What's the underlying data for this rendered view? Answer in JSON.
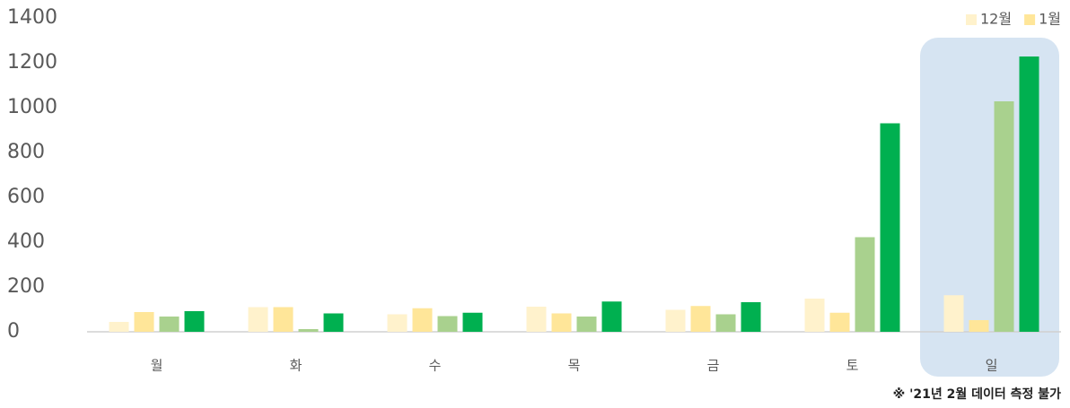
{
  "chart_data": {
    "type": "bar",
    "categories": [
      "월",
      "화",
      "수",
      "목",
      "금",
      "토",
      "일"
    ],
    "series": [
      {
        "name": "12월",
        "color": "#fff2cc",
        "values": [
          44,
          110,
          78,
          112,
          98,
          148,
          163
        ]
      },
      {
        "name": "1월",
        "color": "#ffe699",
        "values": [
          88,
          110,
          105,
          82,
          115,
          85,
          52
        ]
      },
      {
        "color": "#a9d18e",
        "values": [
          68,
          12,
          70,
          68,
          78,
          422,
          1028
        ]
      },
      {
        "color": "#00b050",
        "values": [
          92,
          82,
          85,
          135,
          132,
          930,
          1228
        ]
      }
    ],
    "ylim": [
      0,
      1400
    ],
    "yticks": [
      0,
      200,
      400,
      600,
      800,
      1000,
      1200,
      1400
    ],
    "grid": false,
    "legend": "top-right",
    "footnote": "※ '21년 2월 데이터 측정 불가"
  }
}
